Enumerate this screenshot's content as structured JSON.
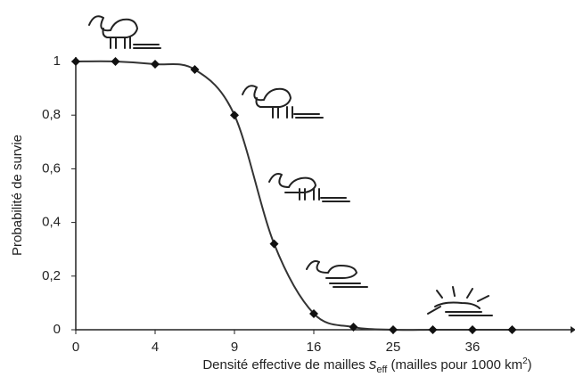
{
  "chart_data": {
    "type": "line",
    "ylabel": "Probabilité de survie",
    "xlabel_parts": [
      "Densité effective de mailles ",
      "s",
      "eff",
      " (mailles pour 1000 km",
      "2",
      ")"
    ],
    "categories": [
      "0",
      null,
      "4",
      null,
      "9",
      null,
      "16",
      null,
      "25",
      null,
      "36",
      null
    ],
    "values": [
      1,
      1,
      0.99,
      0.97,
      0.8,
      0.32,
      0.06,
      0.01,
      0,
      0,
      0,
      0
    ],
    "color": "#333333",
    "ylim": [
      0,
      1
    ],
    "yticks": [
      0,
      {
        "value": 0.2,
        "label": "0,2"
      },
      {
        "value": 0.4,
        "label": "0,4"
      },
      {
        "value": 0.6,
        "label": "0,6"
      },
      {
        "value": 0.8,
        "label": "0,8"
      },
      1
    ],
    "grid": false
  }
}
